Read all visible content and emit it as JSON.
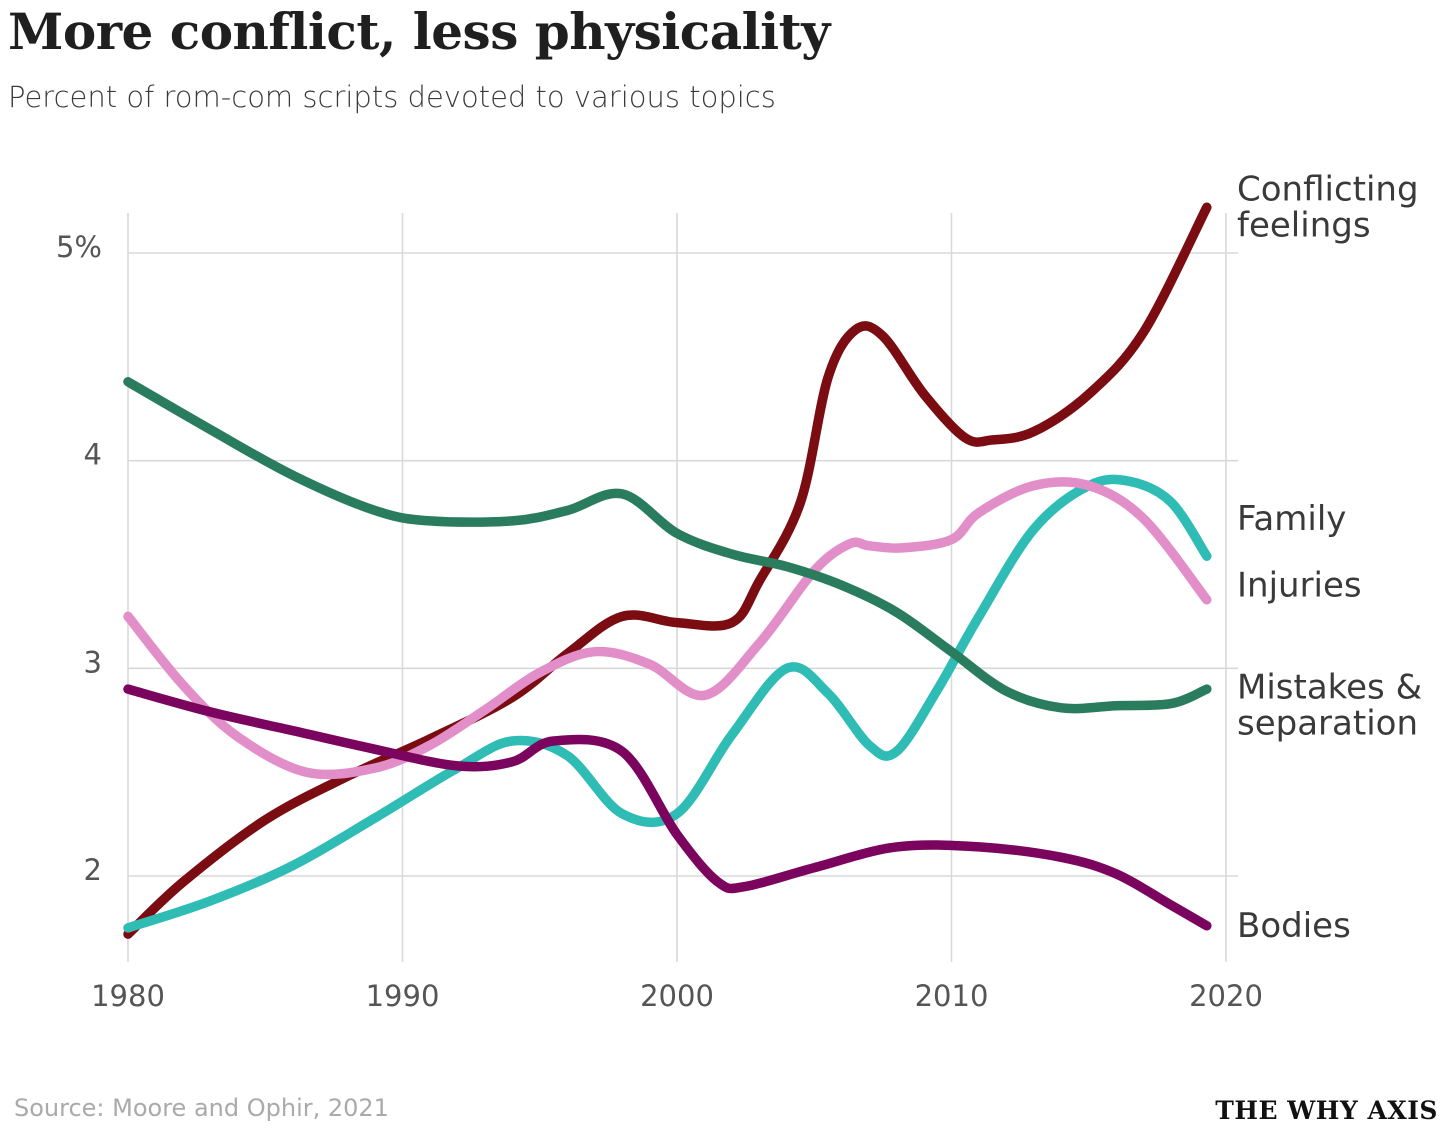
{
  "header": {
    "title": "More conflict, less physicality",
    "subtitle": "Percent of rom-com scripts devoted to various topics"
  },
  "footer": {
    "source": "Source: Moore and Ophir, 2021",
    "brand": "THE WHY AXIS"
  },
  "chart_data": {
    "type": "line",
    "title": "More conflict, less physicality",
    "subtitle": "Percent of rom-com scripts devoted to various topics",
    "xlabel": "",
    "ylabel": "",
    "xlim": [
      1980,
      2020
    ],
    "ylim": [
      1.6,
      5.3
    ],
    "x_ticks": [
      1980,
      1990,
      2000,
      2010,
      2020
    ],
    "x_tick_labels": [
      "1980",
      "1990",
      "2000",
      "2010",
      "2020"
    ],
    "y_ticks": [
      2,
      3,
      4,
      5
    ],
    "y_tick_labels": [
      "2",
      "3",
      "4",
      "5%"
    ],
    "grid": true,
    "legend": "direct labels at right end of lines",
    "series": [
      {
        "name": "Conflicting feelings",
        "label_lines": [
          "Conflicting",
          "feelings"
        ],
        "label_value": 5.22,
        "color": "#7a0c12",
        "x": [
          1980,
          1982,
          1985,
          1988,
          1991,
          1994,
          1996,
          1998,
          2000,
          2002,
          2003,
          2004.5,
          2005.5,
          2006.5,
          2007.5,
          2009,
          2010.5,
          2011.5,
          2013,
          2015,
          2017,
          2019.3
        ],
        "y": [
          1.72,
          1.97,
          2.27,
          2.48,
          2.66,
          2.86,
          3.07,
          3.25,
          3.22,
          3.22,
          3.42,
          3.8,
          4.4,
          4.63,
          4.6,
          4.32,
          4.11,
          4.1,
          4.14,
          4.32,
          4.62,
          5.22
        ]
      },
      {
        "name": "Family",
        "label_lines": [
          "Family"
        ],
        "label_value": 3.72,
        "color": "#2fbcb5",
        "x": [
          1980,
          1983,
          1986,
          1989,
          1992,
          1994,
          1996,
          1998,
          2000,
          2002,
          2004,
          2005.5,
          2007,
          2008,
          2009.5,
          2011,
          2013,
          2015,
          2016.5,
          2018,
          2019.3
        ],
        "y": [
          1.75,
          1.88,
          2.05,
          2.28,
          2.52,
          2.65,
          2.58,
          2.3,
          2.3,
          2.68,
          3.0,
          2.88,
          2.63,
          2.6,
          2.9,
          3.25,
          3.67,
          3.88,
          3.9,
          3.8,
          3.54
        ]
      },
      {
        "name": "Injuries",
        "label_lines": [
          "Injuries"
        ],
        "label_value": 3.4,
        "color": "#e28ec8",
        "x": [
          1980,
          1982,
          1984,
          1986.5,
          1989,
          1991,
          1993,
          1995,
          1997,
          1999,
          2001,
          2003,
          2005,
          2006.3,
          2007,
          2008.2,
          2010,
          2011,
          2013,
          2015,
          2017,
          2019.3
        ],
        "y": [
          3.25,
          2.92,
          2.67,
          2.5,
          2.52,
          2.63,
          2.8,
          2.98,
          3.08,
          3.02,
          2.87,
          3.12,
          3.47,
          3.6,
          3.59,
          3.58,
          3.62,
          3.75,
          3.88,
          3.88,
          3.72,
          3.33
        ]
      },
      {
        "name": "Mistakes & separation",
        "label_lines": [
          "Mistakes &",
          "separation"
        ],
        "label_value": 2.82,
        "color": "#2a7c5e",
        "x": [
          1980,
          1983,
          1986,
          1989,
          1991,
          1994,
          1996,
          1998,
          2000,
          2002,
          2004,
          2006,
          2008,
          2010,
          2012,
          2014,
          2016,
          2018,
          2019.3
        ],
        "y": [
          4.38,
          4.15,
          3.93,
          3.76,
          3.71,
          3.71,
          3.76,
          3.84,
          3.65,
          3.55,
          3.49,
          3.4,
          3.27,
          3.08,
          2.89,
          2.81,
          2.82,
          2.83,
          2.9
        ]
      },
      {
        "name": "Bodies",
        "label_lines": [
          "Bodies"
        ],
        "label_value": 1.76,
        "color": "#7b045e",
        "x": [
          1980,
          1983,
          1986,
          1989,
          1992,
          1994,
          1995.5,
          1998,
          2000,
          2001.5,
          2002.5,
          2005,
          2008,
          2011,
          2014,
          2016,
          2018,
          2019.3
        ],
        "y": [
          2.9,
          2.79,
          2.7,
          2.61,
          2.53,
          2.55,
          2.65,
          2.6,
          2.2,
          1.97,
          1.95,
          2.04,
          2.14,
          2.14,
          2.09,
          2.01,
          1.86,
          1.76
        ]
      }
    ]
  }
}
